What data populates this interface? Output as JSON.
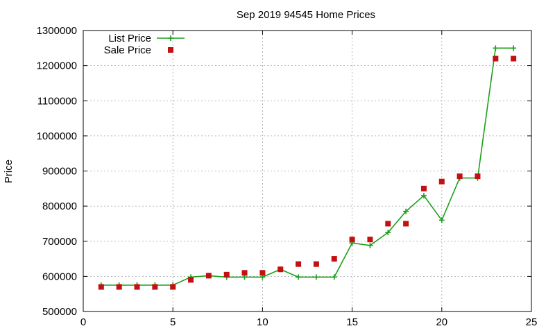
{
  "chart_data": {
    "type": "line",
    "title": "Sep 2019 94545 Home Prices",
    "xlabel": "",
    "ylabel": "Price",
    "xlim": [
      0,
      25
    ],
    "ylim": [
      500000,
      1300000
    ],
    "x_ticks": [
      "0",
      "5",
      "10",
      "15",
      "20",
      "25"
    ],
    "y_ticks": [
      "500000",
      "600000",
      "700000",
      "800000",
      "900000",
      "1000000",
      "1100000",
      "1200000",
      "1300000"
    ],
    "grid": true,
    "legend_position": "top-left",
    "series": [
      {
        "name": "List Price",
        "style": "line-plus",
        "color": "#1aa01a",
        "x": [
          1,
          2,
          3,
          4,
          5,
          6,
          7,
          8,
          9,
          10,
          11,
          12,
          13,
          14,
          15,
          16,
          17,
          18,
          19,
          20,
          21,
          22,
          23,
          24
        ],
        "y": [
          575000,
          575000,
          575000,
          575000,
          575000,
          598000,
          602000,
          598000,
          598000,
          598000,
          620000,
          598000,
          598000,
          598000,
          695000,
          688000,
          725000,
          785000,
          830000,
          760000,
          880000,
          880000,
          1250000,
          1250000
        ]
      },
      {
        "name": "Sale Price",
        "style": "square-markers",
        "color": "#c41010",
        "x": [
          1,
          2,
          3,
          4,
          5,
          6,
          7,
          8,
          9,
          10,
          11,
          12,
          13,
          14,
          15,
          16,
          17,
          18,
          19,
          20,
          21,
          22,
          23,
          24
        ],
        "y": [
          570000,
          570000,
          570000,
          570000,
          570000,
          590000,
          602000,
          605000,
          610000,
          610000,
          620000,
          635000,
          635000,
          650000,
          705000,
          705000,
          750000,
          750000,
          850000,
          870000,
          885000,
          885000,
          1220000,
          1220000
        ]
      }
    ]
  }
}
